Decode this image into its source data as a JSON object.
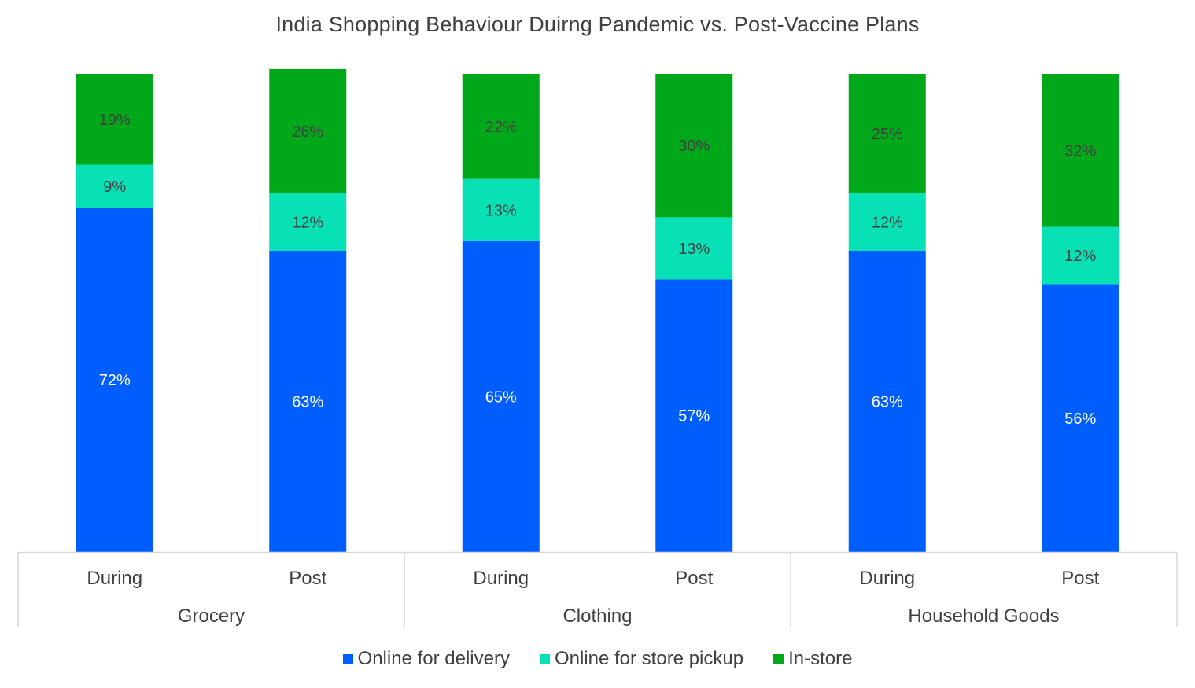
{
  "chart_data": {
    "type": "bar",
    "stacked": true,
    "percent_stacked": true,
    "title": "India Shopping Behaviour Duirng Pandemic vs. Post-Vaccine Plans",
    "groups": [
      {
        "label": "Grocery",
        "categories": [
          "During",
          "Post"
        ]
      },
      {
        "label": "Clothing",
        "categories": [
          "During",
          "Post"
        ]
      },
      {
        "label": "Household Goods",
        "categories": [
          "During",
          "Post"
        ]
      }
    ],
    "categories": [
      "During",
      "Post",
      "During",
      "Post",
      "During",
      "Post"
    ],
    "series": [
      {
        "name": "Online for delivery",
        "color": "#005eff",
        "values": [
          72,
          63,
          65,
          57,
          63,
          56
        ],
        "labels": [
          "72%",
          "63%",
          "65%",
          "57%",
          "63%",
          "56%"
        ]
      },
      {
        "name": "Online for store pickup",
        "color": "#08e1b6",
        "values": [
          9,
          12,
          13,
          13,
          12,
          12
        ],
        "labels": [
          "9%",
          "12%",
          "13%",
          "13%",
          "12%",
          "12%"
        ]
      },
      {
        "name": "In-store",
        "color": "#00a81a",
        "values": [
          19,
          26,
          22,
          30,
          25,
          32
        ],
        "labels": [
          "19%",
          "26%",
          "22%",
          "30%",
          "25%",
          "32%"
        ]
      }
    ],
    "ylim": [
      0,
      100
    ],
    "grid": false,
    "legend_position": "bottom",
    "label_colors": {
      "Online for delivery": "#ffffff",
      "Online for store pickup": "#404040",
      "In-store": "#404040"
    }
  }
}
